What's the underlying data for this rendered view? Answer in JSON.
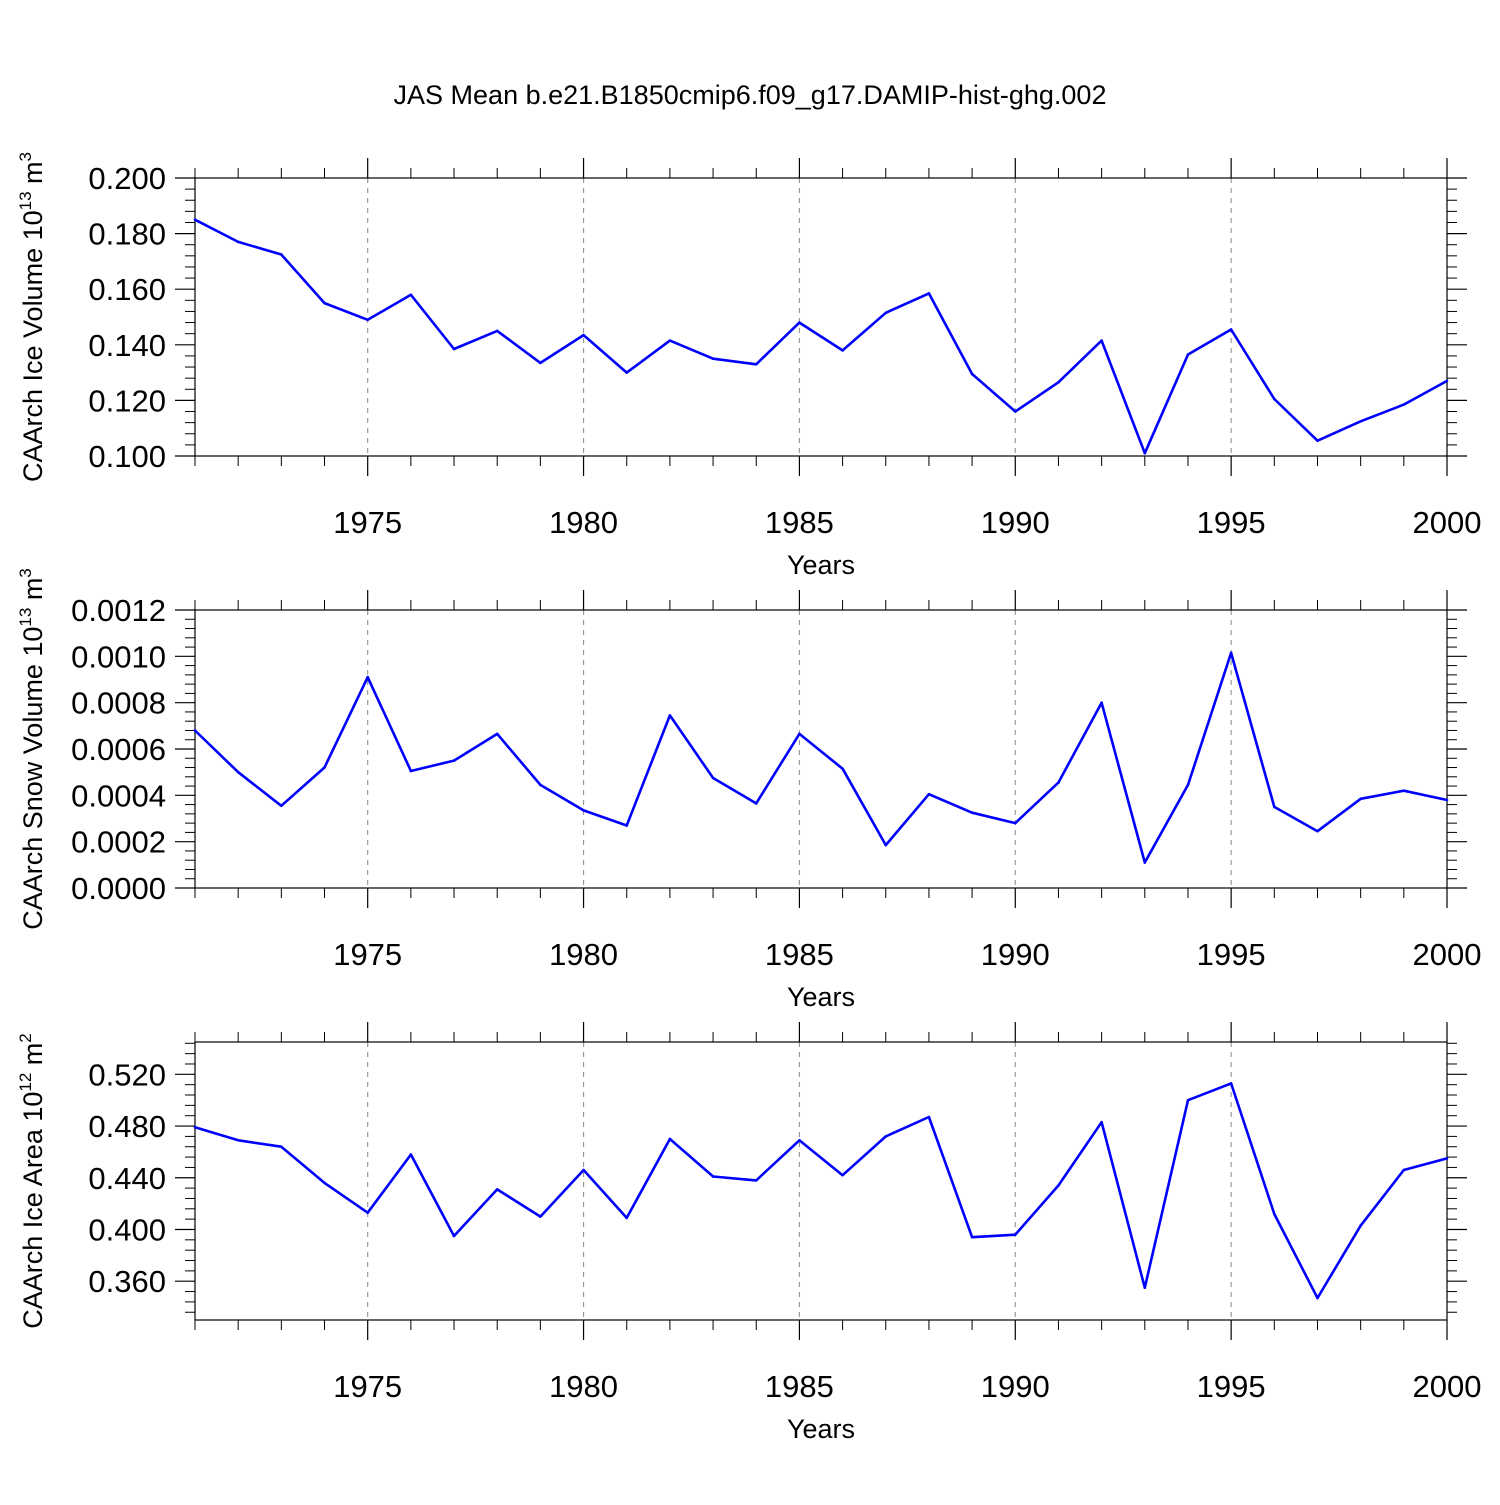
{
  "title": "JAS Mean b.e21.B1850cmip6.f09_g17.DAMIP-hist-ghg.002",
  "chart_data": [
    {
      "type": "line",
      "ylabel": "CAArch Ice Volume 10",
      "ylabel_exp": "13",
      "ylabel_unit": " m",
      "ylabel_unit_exp": "3",
      "xlabel": "Years",
      "xlim": [
        1971,
        2000
      ],
      "ylim": [
        0.1,
        0.2
      ],
      "yticks": [
        0.1,
        0.12,
        0.14,
        0.16,
        0.18,
        0.2
      ],
      "ytick_labels": [
        "0.100",
        "0.120",
        "0.140",
        "0.160",
        "0.180",
        "0.200"
      ],
      "xticks": [
        1975,
        1980,
        1985,
        1990,
        1995,
        2000
      ],
      "xtick_labels": [
        "1975",
        "1980",
        "1985",
        "1990",
        "1995",
        "2000"
      ],
      "line_color": "#0000ff",
      "x": [
        1971,
        1972,
        1973,
        1974,
        1975,
        1976,
        1977,
        1978,
        1979,
        1980,
        1981,
        1982,
        1983,
        1984,
        1985,
        1986,
        1987,
        1988,
        1989,
        1990,
        1991,
        1992,
        1993,
        1994,
        1995,
        1996,
        1997,
        1998,
        1999,
        2000
      ],
      "values": [
        0.185,
        0.177,
        0.1725,
        0.155,
        0.149,
        0.158,
        0.1385,
        0.145,
        0.1335,
        0.1435,
        0.13,
        0.1415,
        0.135,
        0.133,
        0.148,
        0.138,
        0.1515,
        0.1585,
        0.1295,
        0.116,
        0.1265,
        0.1415,
        0.101,
        0.1365,
        0.1455,
        0.1205,
        0.1055,
        0.1125,
        0.1185,
        0.127
      ]
    },
    {
      "type": "line",
      "ylabel": "CAArch Snow Volume 10",
      "ylabel_exp": "13",
      "ylabel_unit": " m",
      "ylabel_unit_exp": "3",
      "xlabel": "Years",
      "xlim": [
        1971,
        2000
      ],
      "ylim": [
        0,
        0.0012
      ],
      "yticks": [
        0,
        0.0002,
        0.0004,
        0.0006,
        0.0008,
        0.001,
        0.0012
      ],
      "ytick_labels": [
        "0.0000",
        "0.0002",
        "0.0004",
        "0.0006",
        "0.0008",
        "0.0010",
        "0.0012"
      ],
      "xticks": [
        1975,
        1980,
        1985,
        1990,
        1995,
        2000
      ],
      "xtick_labels": [
        "1975",
        "1980",
        "1985",
        "1990",
        "1995",
        "2000"
      ],
      "line_color": "#0000ff",
      "x": [
        1971,
        1972,
        1973,
        1974,
        1975,
        1976,
        1977,
        1978,
        1979,
        1980,
        1981,
        1982,
        1983,
        1984,
        1985,
        1986,
        1987,
        1988,
        1989,
        1990,
        1991,
        1992,
        1993,
        1994,
        1995,
        1996,
        1997,
        1998,
        1999,
        2000
      ],
      "values": [
        0.00068,
        0.0005,
        0.000355,
        0.00052,
        0.00091,
        0.000505,
        0.00055,
        0.000665,
        0.000445,
        0.000335,
        0.00027,
        0.000745,
        0.000475,
        0.000365,
        0.000665,
        0.000515,
        0.000185,
        0.000405,
        0.000325,
        0.00028,
        0.000455,
        0.0008,
        0.00011,
        0.000445,
        0.001015,
        0.00035,
        0.000245,
        0.000385,
        0.00042,
        0.00038
      ]
    },
    {
      "type": "line",
      "ylabel": "CAArch Ice Area 10",
      "ylabel_exp": "12",
      "ylabel_unit": " m",
      "ylabel_unit_exp": "2",
      "xlabel": "Years",
      "xlim": [
        1971,
        2000
      ],
      "ylim": [
        0.33,
        0.545
      ],
      "yticks": [
        0.36,
        0.4,
        0.44,
        0.48,
        0.52
      ],
      "ytick_labels": [
        "0.360",
        "0.400",
        "0.440",
        "0.480",
        "0.520"
      ],
      "xticks": [
        1975,
        1980,
        1985,
        1990,
        1995,
        2000
      ],
      "xtick_labels": [
        "1975",
        "1980",
        "1985",
        "1990",
        "1995",
        "2000"
      ],
      "line_color": "#0000ff",
      "x": [
        1971,
        1972,
        1973,
        1974,
        1975,
        1976,
        1977,
        1978,
        1979,
        1980,
        1981,
        1982,
        1983,
        1984,
        1985,
        1986,
        1987,
        1988,
        1989,
        1990,
        1991,
        1992,
        1993,
        1994,
        1995,
        1996,
        1997,
        1998,
        1999,
        2000
      ],
      "values": [
        0.479,
        0.469,
        0.464,
        0.436,
        0.413,
        0.458,
        0.395,
        0.431,
        0.41,
        0.446,
        0.409,
        0.47,
        0.441,
        0.438,
        0.469,
        0.442,
        0.472,
        0.487,
        0.394,
        0.396,
        0.434,
        0.483,
        0.355,
        0.5,
        0.513,
        0.412,
        0.347,
        0.403,
        0.446,
        0.455
      ]
    }
  ]
}
